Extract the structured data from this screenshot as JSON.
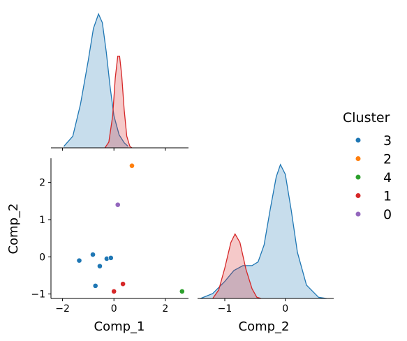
{
  "chart_data": {
    "type": "scatter",
    "layout": "pairplot-corner",
    "variables": [
      "Comp_1",
      "Comp_2"
    ],
    "legend": {
      "title": "Cluster",
      "placement": "right",
      "entries": [
        {
          "label": "3",
          "color": "#1f77b4"
        },
        {
          "label": "2",
          "color": "#ff7f0e"
        },
        {
          "label": "4",
          "color": "#2ca02c"
        },
        {
          "label": "1",
          "color": "#d62728"
        },
        {
          "label": "0",
          "color": "#9467bd"
        }
      ]
    },
    "scatter": {
      "xlabel": "Comp_1",
      "ylabel": "Comp_2",
      "xticks": [
        "−2",
        "0",
        "2"
      ],
      "yticks": [
        "−1",
        "0",
        "1",
        "2"
      ],
      "xlim": [
        -2.45,
        2.9
      ],
      "ylim": [
        -1.12,
        2.65
      ],
      "points": [
        {
          "cluster": "3",
          "x": -1.35,
          "y": -0.1
        },
        {
          "cluster": "3",
          "x": -0.82,
          "y": 0.06
        },
        {
          "cluster": "3",
          "x": -0.55,
          "y": -0.25
        },
        {
          "cluster": "3",
          "x": -0.28,
          "y": -0.05
        },
        {
          "cluster": "3",
          "x": -0.12,
          "y": -0.03
        },
        {
          "cluster": "3",
          "x": -0.72,
          "y": -0.78
        },
        {
          "cluster": "2",
          "x": 0.7,
          "y": 2.45
        },
        {
          "cluster": "4",
          "x": 2.65,
          "y": -0.93
        },
        {
          "cluster": "1",
          "x": 0.0,
          "y": -0.93
        },
        {
          "cluster": "1",
          "x": 0.35,
          "y": -0.73
        },
        {
          "cluster": "0",
          "x": 0.15,
          "y": 1.4
        }
      ]
    },
    "kde_comp1": {
      "xlim": [
        -2.45,
        2.9
      ],
      "xticks": [
        "−2",
        "0",
        "2"
      ],
      "series": [
        {
          "cluster": "3",
          "color": "#1f77b4",
          "curve": [
            [
              -1.95,
              0.01
            ],
            [
              -1.6,
              0.08
            ],
            [
              -1.3,
              0.3
            ],
            [
              -1.0,
              0.6
            ],
            [
              -0.8,
              0.82
            ],
            [
              -0.6,
              0.92
            ],
            [
              -0.45,
              0.86
            ],
            [
              -0.3,
              0.66
            ],
            [
              -0.15,
              0.42
            ],
            [
              0.0,
              0.22
            ],
            [
              0.2,
              0.09
            ],
            [
              0.4,
              0.035
            ],
            [
              0.55,
              0.01
            ]
          ]
        },
        {
          "cluster": "1",
          "color": "#d62728",
          "curve": [
            [
              -0.35,
              0.0
            ],
            [
              -0.2,
              0.04
            ],
            [
              -0.05,
              0.22
            ],
            [
              0.05,
              0.48
            ],
            [
              0.15,
              0.63
            ],
            [
              0.22,
              0.63
            ],
            [
              0.3,
              0.5
            ],
            [
              0.4,
              0.26
            ],
            [
              0.5,
              0.08
            ],
            [
              0.62,
              0.01
            ],
            [
              0.7,
              0.0
            ]
          ]
        }
      ]
    },
    "kde_comp2": {
      "xlabel": "Comp_2",
      "xticks": [
        "−1",
        "0"
      ],
      "xlim": [
        -1.45,
        0.8
      ],
      "series": [
        {
          "cluster": "3",
          "color": "#1f77b4",
          "curve": [
            [
              -1.4,
              0.0
            ],
            [
              -1.2,
              0.04
            ],
            [
              -1.0,
              0.14
            ],
            [
              -0.85,
              0.23
            ],
            [
              -0.7,
              0.27
            ],
            [
              -0.55,
              0.27
            ],
            [
              -0.45,
              0.3
            ],
            [
              -0.35,
              0.44
            ],
            [
              -0.25,
              0.73
            ],
            [
              -0.15,
              1.0
            ],
            [
              -0.08,
              1.1
            ],
            [
              0.0,
              1.02
            ],
            [
              0.1,
              0.72
            ],
            [
              0.2,
              0.38
            ],
            [
              0.35,
              0.11
            ],
            [
              0.55,
              0.01
            ],
            [
              0.68,
              0.0
            ]
          ]
        },
        {
          "cluster": "1",
          "color": "#d62728",
          "curve": [
            [
              -1.2,
              0.0
            ],
            [
              -1.1,
              0.07
            ],
            [
              -1.0,
              0.25
            ],
            [
              -0.9,
              0.46
            ],
            [
              -0.83,
              0.53
            ],
            [
              -0.75,
              0.46
            ],
            [
              -0.65,
              0.24
            ],
            [
              -0.55,
              0.08
            ],
            [
              -0.47,
              0.01
            ],
            [
              -0.4,
              0.0
            ]
          ]
        }
      ]
    }
  }
}
